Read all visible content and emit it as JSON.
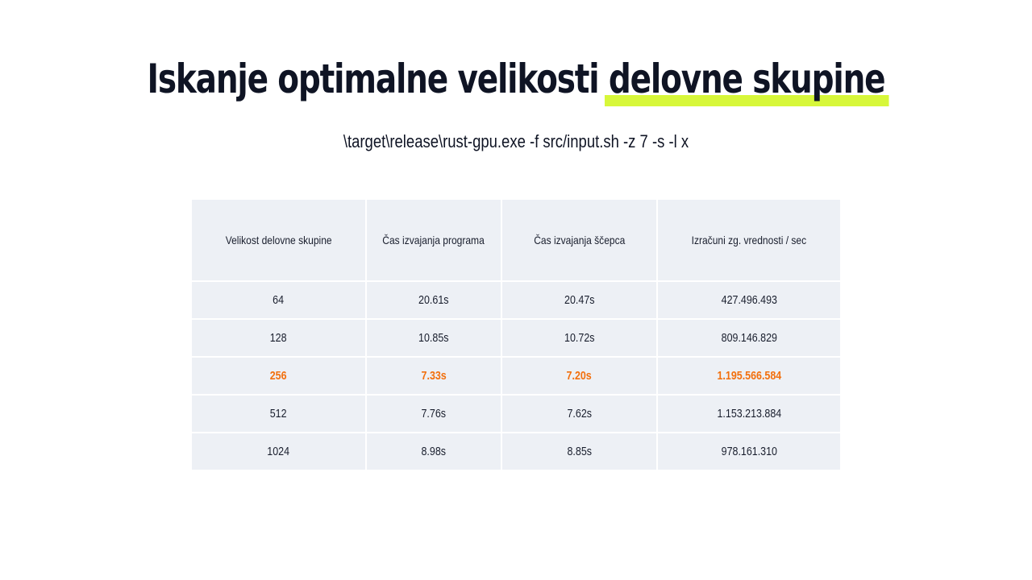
{
  "slide": {
    "title_part1": "Iskanje optimalne velikosti",
    "title_part2": "delovne skupine",
    "highlight_color": "#d7f73a",
    "command": "\\target\\release\\rust-gpu.exe -f src/input.sh -z 7 -s -l x"
  },
  "table": {
    "headers": [
      "Velikost delovne skupine",
      "Čas izvajanja programa",
      "Čas izvajanja ščepca",
      "Izračuni zg. vrednosti / sec"
    ],
    "rows": [
      [
        "64",
        "20.61s",
        "20.47s",
        "427.496.493"
      ],
      [
        "128",
        "10.85s",
        "10.72s",
        "809.146.829"
      ],
      [
        "256",
        "7.33s",
        "7.20s",
        "1.195.566.584"
      ],
      [
        "512",
        "7.76s",
        "7.62s",
        "1.153.213.884"
      ],
      [
        "1024",
        "8.98s",
        "8.85s",
        "978.161.310"
      ]
    ],
    "highlighted_row": 2,
    "highlight_text_color": "#f2700e",
    "cell_background": "#edf0f5"
  }
}
